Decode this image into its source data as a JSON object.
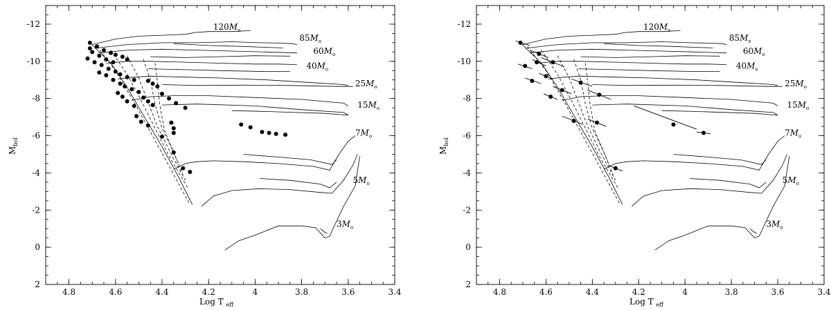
{
  "chart_data": [
    {
      "type": "scatter",
      "panel": "left",
      "xlabel": "Log T",
      "xlabel_sub": "eff",
      "ylabel": "M",
      "ylabel_sub": "bol",
      "xlim": [
        4.9,
        3.4
      ],
      "ylim": [
        2,
        -13
      ],
      "y_inverted": true,
      "x_inverted": true,
      "xticks": [
        4.8,
        4.6,
        4.4,
        4.2,
        4.0,
        3.8,
        3.6,
        3.4
      ],
      "xtick_labels": [
        "4.8",
        "4.6",
        "4.4",
        "4.2",
        "4",
        "3.8",
        "3.6",
        "3.4"
      ],
      "yticks": [
        2,
        0,
        -2,
        -4,
        -6,
        -8,
        -10,
        -12
      ],
      "ytick_labels": [
        "2",
        "0",
        "-2",
        "-4",
        "-6",
        "-8",
        "-10",
        "-12"
      ],
      "grid": false,
      "track_labels": [
        {
          "text": "120",
          "x": 4.18,
          "y": -11.7
        },
        {
          "text": "85",
          "x": 3.81,
          "y": -11.1
        },
        {
          "text": "60",
          "x": 3.75,
          "y": -10.4
        },
        {
          "text": "40",
          "x": 3.78,
          "y": -9.6
        },
        {
          "text": "25",
          "x": 3.57,
          "y": -8.65
        },
        {
          "text": "15",
          "x": 3.56,
          "y": -7.5
        },
        {
          "text": "7",
          "x": 3.57,
          "y": -6.0
        },
        {
          "text": "5",
          "x": 3.58,
          "y": -3.45
        },
        {
          "text": "3",
          "x": 3.65,
          "y": -1.1
        }
      ],
      "mass_unit": "M",
      "mass_unit_sub": "o",
      "points": [
        {
          "x": 4.71,
          "y": -11.0
        },
        {
          "x": 4.68,
          "y": -10.8
        },
        {
          "x": 4.71,
          "y": -10.7
        },
        {
          "x": 4.65,
          "y": -10.6
        },
        {
          "x": 4.62,
          "y": -10.45
        },
        {
          "x": 4.6,
          "y": -10.35
        },
        {
          "x": 4.57,
          "y": -10.25
        },
        {
          "x": 4.55,
          "y": -10.1
        },
        {
          "x": 4.7,
          "y": -10.5
        },
        {
          "x": 4.67,
          "y": -10.3
        },
        {
          "x": 4.64,
          "y": -10.1
        },
        {
          "x": 4.61,
          "y": -9.95
        },
        {
          "x": 4.72,
          "y": -10.15
        },
        {
          "x": 4.69,
          "y": -9.95
        },
        {
          "x": 4.66,
          "y": -9.8
        },
        {
          "x": 4.63,
          "y": -9.6
        },
        {
          "x": 4.6,
          "y": -9.45
        },
        {
          "x": 4.58,
          "y": -9.3
        },
        {
          "x": 4.55,
          "y": -9.15
        },
        {
          "x": 4.52,
          "y": -9.0
        },
        {
          "x": 4.67,
          "y": -9.4
        },
        {
          "x": 4.64,
          "y": -9.25
        },
        {
          "x": 4.61,
          "y": -9.0
        },
        {
          "x": 4.58,
          "y": -8.8
        },
        {
          "x": 4.56,
          "y": -8.65
        },
        {
          "x": 4.53,
          "y": -8.5
        },
        {
          "x": 4.5,
          "y": -8.35
        },
        {
          "x": 4.46,
          "y": -8.95
        },
        {
          "x": 4.44,
          "y": -8.8
        },
        {
          "x": 4.42,
          "y": -8.65
        },
        {
          "x": 4.59,
          "y": -8.3
        },
        {
          "x": 4.57,
          "y": -8.1
        },
        {
          "x": 4.55,
          "y": -7.85
        },
        {
          "x": 4.52,
          "y": -7.6
        },
        {
          "x": 4.48,
          "y": -8.05
        },
        {
          "x": 4.46,
          "y": -7.85
        },
        {
          "x": 4.44,
          "y": -7.65
        },
        {
          "x": 4.4,
          "y": -8.25
        },
        {
          "x": 4.37,
          "y": -8.0
        },
        {
          "x": 4.34,
          "y": -7.75
        },
        {
          "x": 4.3,
          "y": -7.5
        },
        {
          "x": 4.51,
          "y": -7.05
        },
        {
          "x": 4.49,
          "y": -6.75
        },
        {
          "x": 4.46,
          "y": -6.55
        },
        {
          "x": 4.36,
          "y": -6.7
        },
        {
          "x": 4.35,
          "y": -6.4
        },
        {
          "x": 4.35,
          "y": -6.15
        },
        {
          "x": 4.4,
          "y": -5.95
        },
        {
          "x": 4.35,
          "y": -5.1
        },
        {
          "x": 4.31,
          "y": -4.25
        },
        {
          "x": 4.28,
          "y": -4.05
        },
        {
          "x": 4.06,
          "y": -6.6
        },
        {
          "x": 4.02,
          "y": -6.45
        },
        {
          "x": 3.97,
          "y": -6.2
        },
        {
          "x": 3.94,
          "y": -6.15
        },
        {
          "x": 3.91,
          "y": -6.1
        },
        {
          "x": 3.87,
          "y": -6.05
        }
      ]
    },
    {
      "type": "scatter",
      "panel": "right",
      "xlabel": "Log T",
      "xlabel_sub": "eff",
      "ylabel": "M",
      "ylabel_sub": "bol",
      "xlim": [
        4.9,
        3.4
      ],
      "ylim": [
        2,
        -13
      ],
      "y_inverted": true,
      "x_inverted": true,
      "xticks": [
        4.8,
        4.6,
        4.4,
        4.2,
        4.0,
        3.8,
        3.6,
        3.4
      ],
      "xtick_labels": [
        "4.8",
        "4.6",
        "4.4",
        "4.2",
        "4",
        "3.8",
        "3.6",
        "3.4"
      ],
      "yticks": [
        2,
        0,
        -2,
        -4,
        -6,
        -8,
        -10,
        -12
      ],
      "ytick_labels": [
        "2",
        "0",
        "-2",
        "-4",
        "-6",
        "-8",
        "-10",
        "-12"
      ],
      "grid": false,
      "track_labels": [
        {
          "text": "120",
          "x": 4.18,
          "y": -11.7
        },
        {
          "text": "85",
          "x": 3.81,
          "y": -11.1
        },
        {
          "text": "60",
          "x": 3.75,
          "y": -10.4
        },
        {
          "text": "40",
          "x": 3.78,
          "y": -9.6
        },
        {
          "text": "25",
          "x": 3.57,
          "y": -8.65
        },
        {
          "text": "15",
          "x": 3.56,
          "y": -7.5
        },
        {
          "text": "7",
          "x": 3.57,
          "y": -6.0
        },
        {
          "text": "5",
          "x": 3.58,
          "y": -3.45
        },
        {
          "text": "3",
          "x": 3.65,
          "y": -1.1
        }
      ],
      "mass_unit": "M",
      "mass_unit_sub": "o",
      "points": [
        {
          "x": 4.71,
          "y": -11.0
        },
        {
          "x": 4.63,
          "y": -10.4
        },
        {
          "x": 4.57,
          "y": -9.95
        },
        {
          "x": 4.69,
          "y": -9.75
        },
        {
          "x": 4.64,
          "y": -9.95
        },
        {
          "x": 4.6,
          "y": -9.2
        },
        {
          "x": 4.66,
          "y": -8.95
        },
        {
          "x": 4.53,
          "y": -8.45
        },
        {
          "x": 4.45,
          "y": -8.85
        },
        {
          "x": 4.37,
          "y": -8.2
        },
        {
          "x": 4.58,
          "y": -8.1
        },
        {
          "x": 4.48,
          "y": -6.8
        },
        {
          "x": 4.38,
          "y": -6.7
        },
        {
          "x": 4.3,
          "y": -4.25
        },
        {
          "x": 4.05,
          "y": -6.6
        },
        {
          "x": 3.92,
          "y": -6.15
        }
      ],
      "segments": [
        {
          "x1": 4.73,
          "y1": -11.1,
          "x2": 4.67,
          "y2": -10.85
        },
        {
          "x1": 4.67,
          "y1": -10.6,
          "x2": 4.59,
          "y2": -10.2
        },
        {
          "x1": 4.62,
          "y1": -10.2,
          "x2": 4.52,
          "y2": -9.7
        },
        {
          "x1": 4.72,
          "y1": -9.85,
          "x2": 4.66,
          "y2": -9.6
        },
        {
          "x1": 4.66,
          "y1": -10.1,
          "x2": 4.6,
          "y2": -9.75
        },
        {
          "x1": 4.63,
          "y1": -9.35,
          "x2": 4.57,
          "y2": -9.05
        },
        {
          "x1": 4.69,
          "y1": -9.1,
          "x2": 4.62,
          "y2": -8.8
        },
        {
          "x1": 4.57,
          "y1": -8.65,
          "x2": 4.49,
          "y2": -8.25
        },
        {
          "x1": 4.49,
          "y1": -9.05,
          "x2": 4.4,
          "y2": -8.65
        },
        {
          "x1": 4.42,
          "y1": -8.45,
          "x2": 4.32,
          "y2": -7.95
        },
        {
          "x1": 4.61,
          "y1": -8.25,
          "x2": 4.55,
          "y2": -7.95
        },
        {
          "x1": 4.53,
          "y1": -7.05,
          "x2": 4.44,
          "y2": -6.6
        },
        {
          "x1": 4.42,
          "y1": -6.9,
          "x2": 4.34,
          "y2": -6.5
        },
        {
          "x1": 4.33,
          "y1": -4.4,
          "x2": 4.27,
          "y2": -4.1
        },
        {
          "x1": 4.22,
          "y1": -7.6,
          "x2": 3.95,
          "y2": -6.35
        },
        {
          "x1": 3.95,
          "y1": -6.2,
          "x2": 3.89,
          "y2": -6.1
        }
      ]
    }
  ]
}
